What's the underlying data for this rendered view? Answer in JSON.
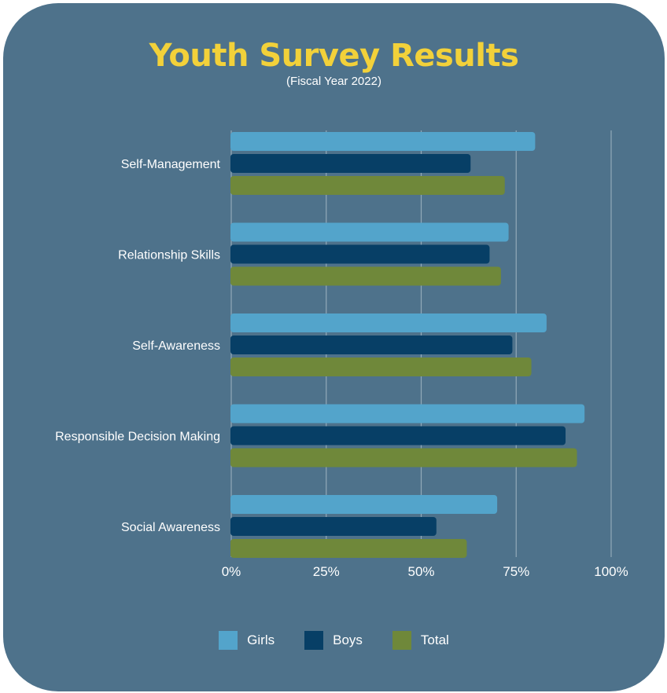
{
  "title": "Youth Survey Results",
  "subtitle": "(Fiscal Year 2022)",
  "colors": {
    "background": "#4e728b",
    "title": "#f2d13a",
    "girls": "#53a4cb",
    "boys": "#073f66",
    "total": "#6f883a",
    "grid": "#a9bcc8"
  },
  "chart_data": {
    "type": "bar",
    "orientation": "horizontal",
    "categories": [
      "Self-Management",
      "Relationship Skills",
      "Self-Awareness",
      "Responsible Decision Making",
      "Social Awareness"
    ],
    "series": [
      {
        "name": "Girls",
        "values": [
          80,
          73,
          83,
          93,
          70
        ]
      },
      {
        "name": "Boys",
        "values": [
          63,
          68,
          74,
          88,
          54
        ]
      },
      {
        "name": "Total",
        "values": [
          72,
          71,
          79,
          91,
          62
        ]
      }
    ],
    "xlim": [
      0,
      100
    ],
    "x_ticks": [
      "0%",
      "25%",
      "50%",
      "75%",
      "100%"
    ],
    "grid": true,
    "legend_position": "bottom"
  }
}
